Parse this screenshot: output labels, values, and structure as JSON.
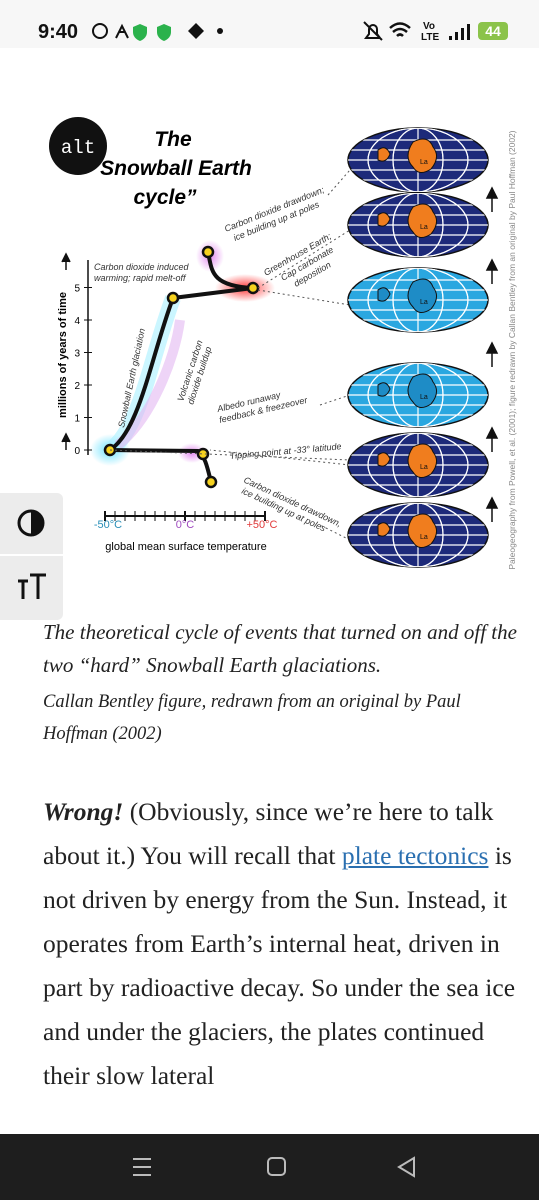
{
  "status": {
    "time": "9:40",
    "network": [
      "Vo",
      "LTE"
    ],
    "battery": "44"
  },
  "figure": {
    "alt": "alt",
    "title": [
      "The",
      "Snowball Earth",
      "cycle”"
    ],
    "labels": {
      "drawdown_top": [
        "Carbon dioxide drawdown;",
        "ice building up at poles"
      ],
      "greenhouse": [
        "Greenhouse Earth;",
        "Cap carbonate",
        "deposition"
      ],
      "melt": [
        "Carbon dioxide induced",
        "warming; rapid melt-off"
      ],
      "glaciation": "Snowball Earth glaciation",
      "volcanic": [
        "Volcanic carbon",
        "dioxide buildup"
      ],
      "albedo": [
        "Albedo runaway",
        "feedback & freezeover"
      ],
      "tipping": "Tipping point at -33° latitude",
      "drawdown_bottom": [
        "Carbon dioxide drawdown,",
        "ice building up at poles"
      ]
    },
    "y_axis_label": "millions of years of time",
    "y_ticks": [
      "0",
      "1",
      "2",
      "3",
      "4",
      "5"
    ],
    "x_ticks": [
      "-50°C",
      "0°C",
      "+50°C"
    ],
    "x_axis_label": "global mean surface temperature",
    "credit": "Paleogeography from Powell, et al. (2001); figure redrawn by Callan Bentley from an original by Paul Hoffman (2002)",
    "globe_labels": [
      "La",
      "La",
      "La",
      "La",
      "La",
      "La"
    ]
  },
  "caption": {
    "main": "The theoretical cycle of events that turned on and off the two “hard” Snowball Earth glaciations.",
    "credit": "Callan Bentley figure, redrawn from an original by Paul Hoffman (2002)"
  },
  "body": {
    "emphasis": "Wrong!",
    "before_link": " (Obviously, since we’re here to talk about it.) You will recall that ",
    "link": "plate tectonics",
    "after_link": " is not driven by energy from the Sun. Instead, it operates from Earth’s internal heat, driven in part by radioactive decay. So under the sea ice and under the glaciers, the plates continued their slow lateral"
  }
}
